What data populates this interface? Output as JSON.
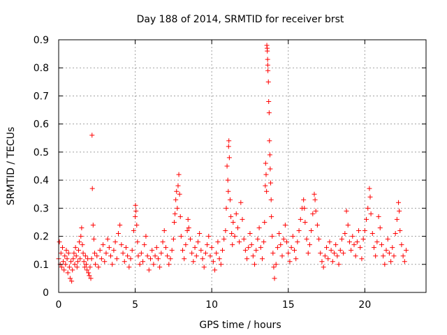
{
  "chart_data": {
    "type": "scatter",
    "title": "Day 188 of 2014, SRMTID for receiver brst",
    "xlabel": "GPS time / hours",
    "ylabel": "SRMTID / TECUs",
    "xlim": [
      0,
      24
    ],
    "ylim": [
      0,
      0.9
    ],
    "xticks": [
      0,
      5,
      10,
      15,
      20
    ],
    "yticks": [
      0,
      0.1,
      0.2,
      0.3,
      0.4,
      0.5,
      0.6,
      0.7,
      0.8,
      0.9
    ],
    "xtick_labels": [
      "0",
      "5",
      "10",
      "15",
      "20"
    ],
    "ytick_labels": [
      "0",
      "0.1",
      "0.2",
      "0.3",
      "0.4",
      "0.5",
      "0.6",
      "0.7",
      "0.8",
      "0.9"
    ],
    "grid": true,
    "marker": "+",
    "color": "#ff0000",
    "series": [
      {
        "name": "SRMTID",
        "points": [
          [
            0.0,
            0.12
          ],
          [
            0.05,
            0.18
          ],
          [
            0.1,
            0.1
          ],
          [
            0.15,
            0.14
          ],
          [
            0.2,
            0.09
          ],
          [
            0.25,
            0.16
          ],
          [
            0.3,
            0.11
          ],
          [
            0.35,
            0.08
          ],
          [
            0.4,
            0.13
          ],
          [
            0.45,
            0.1
          ],
          [
            0.5,
            0.15
          ],
          [
            0.55,
            0.12
          ],
          [
            0.6,
            0.07
          ],
          [
            0.65,
            0.14
          ],
          [
            0.7,
            0.09
          ],
          [
            0.75,
            0.05
          ],
          [
            0.8,
            0.11
          ],
          [
            0.85,
            0.04
          ],
          [
            0.9,
            0.08
          ],
          [
            0.95,
            0.12
          ],
          [
            1.0,
            0.14
          ],
          [
            1.05,
            0.1
          ],
          [
            1.1,
            0.16
          ],
          [
            1.15,
            0.13
          ],
          [
            1.2,
            0.09
          ],
          [
            1.25,
            0.11
          ],
          [
            1.3,
            0.15
          ],
          [
            1.35,
            0.18
          ],
          [
            1.4,
            0.12
          ],
          [
            1.45,
            0.2
          ],
          [
            1.5,
            0.23
          ],
          [
            1.55,
            0.17
          ],
          [
            1.6,
            0.14
          ],
          [
            1.65,
            0.11
          ],
          [
            1.7,
            0.09
          ],
          [
            1.75,
            0.13
          ],
          [
            1.8,
            0.1
          ],
          [
            1.85,
            0.08
          ],
          [
            1.9,
            0.12
          ],
          [
            1.95,
            0.07
          ],
          [
            2.0,
            0.06
          ],
          [
            2.05,
            0.09
          ],
          [
            2.1,
            0.05
          ],
          [
            2.15,
            0.12
          ],
          [
            2.18,
            0.56
          ],
          [
            2.2,
            0.37
          ],
          [
            2.25,
            0.24
          ],
          [
            2.3,
            0.19
          ],
          [
            2.35,
            0.14
          ],
          [
            2.4,
            0.1
          ],
          [
            2.5,
            0.13
          ],
          [
            2.6,
            0.09
          ],
          [
            2.7,
            0.15
          ],
          [
            2.8,
            0.12
          ],
          [
            2.9,
            0.17
          ],
          [
            3.0,
            0.11
          ],
          [
            3.1,
            0.14
          ],
          [
            3.2,
            0.19
          ],
          [
            3.3,
            0.16
          ],
          [
            3.4,
            0.13
          ],
          [
            3.5,
            0.1
          ],
          [
            3.6,
            0.15
          ],
          [
            3.7,
            0.18
          ],
          [
            3.8,
            0.12
          ],
          [
            3.9,
            0.21
          ],
          [
            4.0,
            0.24
          ],
          [
            4.1,
            0.17
          ],
          [
            4.2,
            0.14
          ],
          [
            4.3,
            0.11
          ],
          [
            4.4,
            0.16
          ],
          [
            4.5,
            0.13
          ],
          [
            4.6,
            0.09
          ],
          [
            4.7,
            0.12
          ],
          [
            4.8,
            0.15
          ],
          [
            4.9,
            0.22
          ],
          [
            5.0,
            0.27
          ],
          [
            5.02,
            0.31
          ],
          [
            5.05,
            0.29
          ],
          [
            5.1,
            0.24
          ],
          [
            5.15,
            0.18
          ],
          [
            5.2,
            0.13
          ],
          [
            5.3,
            0.1
          ],
          [
            5.4,
            0.14
          ],
          [
            5.5,
            0.11
          ],
          [
            5.6,
            0.17
          ],
          [
            5.7,
            0.2
          ],
          [
            5.8,
            0.13
          ],
          [
            5.9,
            0.08
          ],
          [
            6.0,
            0.12
          ],
          [
            6.1,
            0.15
          ],
          [
            6.2,
            0.1
          ],
          [
            6.3,
            0.13
          ],
          [
            6.4,
            0.16
          ],
          [
            6.5,
            0.12
          ],
          [
            6.6,
            0.09
          ],
          [
            6.7,
            0.14
          ],
          [
            6.8,
            0.18
          ],
          [
            6.9,
            0.22
          ],
          [
            7.0,
            0.16
          ],
          [
            7.1,
            0.13
          ],
          [
            7.2,
            0.1
          ],
          [
            7.3,
            0.12
          ],
          [
            7.4,
            0.15
          ],
          [
            7.5,
            0.19
          ],
          [
            7.55,
            0.25
          ],
          [
            7.6,
            0.28
          ],
          [
            7.65,
            0.33
          ],
          [
            7.7,
            0.36
          ],
          [
            7.75,
            0.3
          ],
          [
            7.8,
            0.38
          ],
          [
            7.85,
            0.42
          ],
          [
            7.9,
            0.35
          ],
          [
            7.95,
            0.27
          ],
          [
            8.0,
            0.2
          ],
          [
            8.1,
            0.15
          ],
          [
            8.2,
            0.12
          ],
          [
            8.3,
            0.17
          ],
          [
            8.4,
            0.22
          ],
          [
            8.45,
            0.26
          ],
          [
            8.5,
            0.23
          ],
          [
            8.6,
            0.19
          ],
          [
            8.7,
            0.14
          ],
          [
            8.8,
            0.11
          ],
          [
            8.9,
            0.16
          ],
          [
            9.0,
            0.13
          ],
          [
            9.1,
            0.18
          ],
          [
            9.2,
            0.21
          ],
          [
            9.3,
            0.15
          ],
          [
            9.4,
            0.12
          ],
          [
            9.5,
            0.09
          ],
          [
            9.6,
            0.14
          ],
          [
            9.7,
            0.17
          ],
          [
            9.8,
            0.2
          ],
          [
            9.9,
            0.13
          ],
          [
            10.0,
            0.16
          ],
          [
            10.1,
            0.11
          ],
          [
            10.2,
            0.08
          ],
          [
            10.3,
            0.14
          ],
          [
            10.4,
            0.18
          ],
          [
            10.5,
            0.12
          ],
          [
            10.6,
            0.1
          ],
          [
            10.7,
            0.15
          ],
          [
            10.8,
            0.19
          ],
          [
            10.9,
            0.22
          ],
          [
            10.95,
            0.3
          ],
          [
            11.0,
            0.45
          ],
          [
            11.05,
            0.4
          ],
          [
            11.08,
            0.36
          ],
          [
            11.1,
            0.52
          ],
          [
            11.12,
            0.54
          ],
          [
            11.15,
            0.48
          ],
          [
            11.2,
            0.33
          ],
          [
            11.25,
            0.27
          ],
          [
            11.3,
            0.21
          ],
          [
            11.35,
            0.17
          ],
          [
            11.4,
            0.25
          ],
          [
            11.5,
            0.2
          ],
          [
            11.6,
            0.28
          ],
          [
            11.7,
            0.23
          ],
          [
            11.8,
            0.18
          ],
          [
            11.9,
            0.32
          ],
          [
            12.0,
            0.26
          ],
          [
            12.1,
            0.19
          ],
          [
            12.2,
            0.15
          ],
          [
            12.3,
            0.12
          ],
          [
            12.4,
            0.16
          ],
          [
            12.5,
            0.21
          ],
          [
            12.6,
            0.17
          ],
          [
            12.7,
            0.13
          ],
          [
            12.8,
            0.1
          ],
          [
            12.9,
            0.15
          ],
          [
            13.0,
            0.19
          ],
          [
            13.1,
            0.23
          ],
          [
            13.2,
            0.16
          ],
          [
            13.3,
            0.12
          ],
          [
            13.4,
            0.18
          ],
          [
            13.45,
            0.25
          ],
          [
            13.5,
            0.38
          ],
          [
            13.52,
            0.46
          ],
          [
            13.55,
            0.42
          ],
          [
            13.58,
            0.36
          ],
          [
            13.6,
            0.88
          ],
          [
            13.62,
            0.87
          ],
          [
            13.63,
            0.86
          ],
          [
            13.65,
            0.83
          ],
          [
            13.66,
            0.81
          ],
          [
            13.67,
            0.79
          ],
          [
            13.7,
            0.75
          ],
          [
            13.72,
            0.68
          ],
          [
            13.75,
            0.64
          ],
          [
            13.77,
            0.54
          ],
          [
            13.8,
            0.49
          ],
          [
            13.82,
            0.44
          ],
          [
            13.85,
            0.39
          ],
          [
            13.88,
            0.33
          ],
          [
            13.9,
            0.27
          ],
          [
            13.95,
            0.2
          ],
          [
            14.0,
            0.14
          ],
          [
            14.05,
            0.09
          ],
          [
            14.1,
            0.05
          ],
          [
            14.2,
            0.1
          ],
          [
            14.3,
            0.16
          ],
          [
            14.4,
            0.21
          ],
          [
            14.5,
            0.17
          ],
          [
            14.6,
            0.13
          ],
          [
            14.7,
            0.19
          ],
          [
            14.8,
            0.24
          ],
          [
            14.9,
            0.18
          ],
          [
            15.0,
            0.14
          ],
          [
            15.1,
            0.11
          ],
          [
            15.2,
            0.16
          ],
          [
            15.3,
            0.2
          ],
          [
            15.4,
            0.15
          ],
          [
            15.5,
            0.12
          ],
          [
            15.6,
            0.18
          ],
          [
            15.7,
            0.22
          ],
          [
            15.8,
            0.26
          ],
          [
            15.9,
            0.3
          ],
          [
            16.0,
            0.33
          ],
          [
            16.05,
            0.3
          ],
          [
            16.1,
            0.25
          ],
          [
            16.2,
            0.19
          ],
          [
            16.3,
            0.14
          ],
          [
            16.4,
            0.17
          ],
          [
            16.5,
            0.22
          ],
          [
            16.6,
            0.28
          ],
          [
            16.7,
            0.35
          ],
          [
            16.75,
            0.33
          ],
          [
            16.8,
            0.29
          ],
          [
            16.9,
            0.24
          ],
          [
            17.0,
            0.19
          ],
          [
            17.1,
            0.14
          ],
          [
            17.2,
            0.11
          ],
          [
            17.3,
            0.09
          ],
          [
            17.4,
            0.13
          ],
          [
            17.5,
            0.16
          ],
          [
            17.6,
            0.12
          ],
          [
            17.7,
            0.18
          ],
          [
            17.8,
            0.15
          ],
          [
            17.9,
            0.11
          ],
          [
            18.0,
            0.14
          ],
          [
            18.1,
            0.17
          ],
          [
            18.2,
            0.13
          ],
          [
            18.3,
            0.1
          ],
          [
            18.4,
            0.15
          ],
          [
            18.5,
            0.19
          ],
          [
            18.6,
            0.14
          ],
          [
            18.7,
            0.21
          ],
          [
            18.8,
            0.29
          ],
          [
            18.9,
            0.24
          ],
          [
            19.0,
            0.18
          ],
          [
            19.1,
            0.15
          ],
          [
            19.2,
            0.2
          ],
          [
            19.3,
            0.17
          ],
          [
            19.4,
            0.13
          ],
          [
            19.5,
            0.18
          ],
          [
            19.6,
            0.22
          ],
          [
            19.7,
            0.16
          ],
          [
            19.8,
            0.12
          ],
          [
            19.9,
            0.19
          ],
          [
            20.0,
            0.22
          ],
          [
            20.1,
            0.26
          ],
          [
            20.2,
            0.3
          ],
          [
            20.3,
            0.37
          ],
          [
            20.35,
            0.34
          ],
          [
            20.4,
            0.28
          ],
          [
            20.5,
            0.21
          ],
          [
            20.6,
            0.16
          ],
          [
            20.7,
            0.13
          ],
          [
            20.8,
            0.18
          ],
          [
            20.9,
            0.27
          ],
          [
            21.0,
            0.23
          ],
          [
            21.1,
            0.17
          ],
          [
            21.2,
            0.13
          ],
          [
            21.3,
            0.1
          ],
          [
            21.4,
            0.15
          ],
          [
            21.5,
            0.19
          ],
          [
            21.6,
            0.14
          ],
          [
            21.7,
            0.11
          ],
          [
            21.8,
            0.16
          ],
          [
            21.9,
            0.13
          ],
          [
            22.0,
            0.21
          ],
          [
            22.1,
            0.26
          ],
          [
            22.2,
            0.32
          ],
          [
            22.25,
            0.29
          ],
          [
            22.3,
            0.22
          ],
          [
            22.4,
            0.17
          ],
          [
            22.5,
            0.13
          ],
          [
            22.6,
            0.11
          ],
          [
            22.7,
            0.15
          ]
        ]
      }
    ]
  }
}
